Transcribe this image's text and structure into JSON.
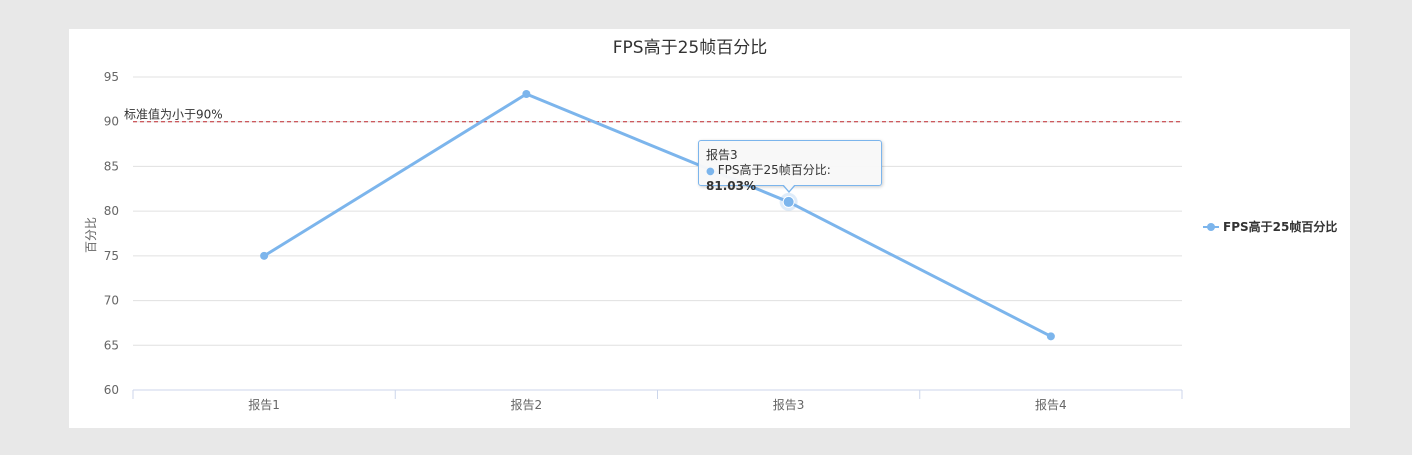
{
  "chart_data": {
    "type": "line",
    "title": "FPS高于25帧百分比",
    "xlabel": "",
    "ylabel": "百分比",
    "categories": [
      "报告1",
      "报告2",
      "报告3",
      "报告4"
    ],
    "series": [
      {
        "name": "FPS高于25帧百分比",
        "values": [
          75,
          93.1,
          81.03,
          66
        ],
        "color": "#7cb5ec"
      }
    ],
    "ylim": [
      60,
      95
    ],
    "yticks": [
      60,
      65,
      70,
      75,
      80,
      85,
      90,
      95
    ],
    "grid": true,
    "legend_position": "right",
    "reference_line": {
      "value": 90,
      "label": "标准值为小于90%",
      "color": "#c0282f",
      "style": "dashed"
    },
    "tooltip": {
      "category": "报告3",
      "series_label": "FPS高于25帧百分比: ",
      "value_text": "81.03%"
    }
  }
}
